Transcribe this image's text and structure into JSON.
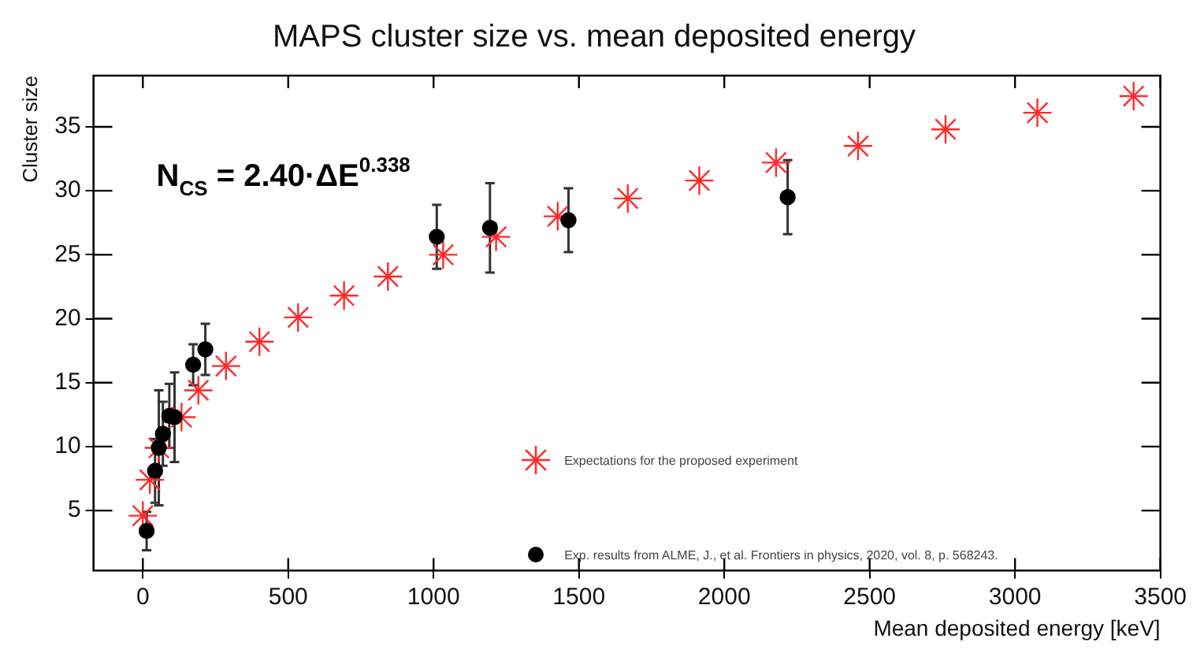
{
  "chart_data": {
    "type": "scatter",
    "title": "MAPS cluster size vs. mean deposited energy",
    "xlabel": "Mean deposited energy [keV]",
    "ylabel": "Cluster size",
    "annotations": [
      "N$_{CS}$ = 2.40·ΔE$^{0.338}$"
    ],
    "xlim": [
      -170,
      3500
    ],
    "xticks": [
      0,
      500,
      1000,
      1500,
      2000,
      2500,
      3000,
      3500
    ],
    "ylim": [
      0.3,
      39
    ],
    "yticks": [
      5,
      10,
      15,
      20,
      25,
      30,
      35
    ],
    "grid": false,
    "legend": "bottom right",
    "series": [
      {
        "name": "Expectations for the proposed experiment",
        "color": "#ff2a2a",
        "marker": "cross",
        "x": [
          0,
          24,
          55,
          133,
          191,
          286,
          401,
          534,
          692,
          843,
          1033,
          1215,
          1427,
          1668,
          1914,
          2178,
          2460,
          2761,
          3077,
          3408
        ],
        "values": [
          4.6,
          7.4,
          9.9,
          12.3,
          14.4,
          16.3,
          18.2,
          20.1,
          21.8,
          23.3,
          25.0,
          26.4,
          28.0,
          29.4,
          30.8,
          32.2,
          33.5,
          34.8,
          36.1,
          37.4
        ]
      },
      {
        "name": "Exp. results from ALME, J., et al. Frontiers in physics, 2020, vol. 8, p. 568243.",
        "color": "#000000",
        "marker": "circle",
        "x": [
          13,
          42,
          55,
          69,
          91,
          109,
          173,
          215,
          1011,
          1194,
          1464,
          2218
        ],
        "values": [
          3.4,
          8.1,
          9.9,
          11.0,
          12.4,
          12.3,
          16.4,
          17.6,
          26.4,
          27.1,
          27.7,
          29.5
        ],
        "errors": [
          1.5,
          2.5,
          4.5,
          2.5,
          2.5,
          3.5,
          1.6,
          2.0,
          2.5,
          3.5,
          2.5,
          2.9
        ]
      }
    ]
  }
}
